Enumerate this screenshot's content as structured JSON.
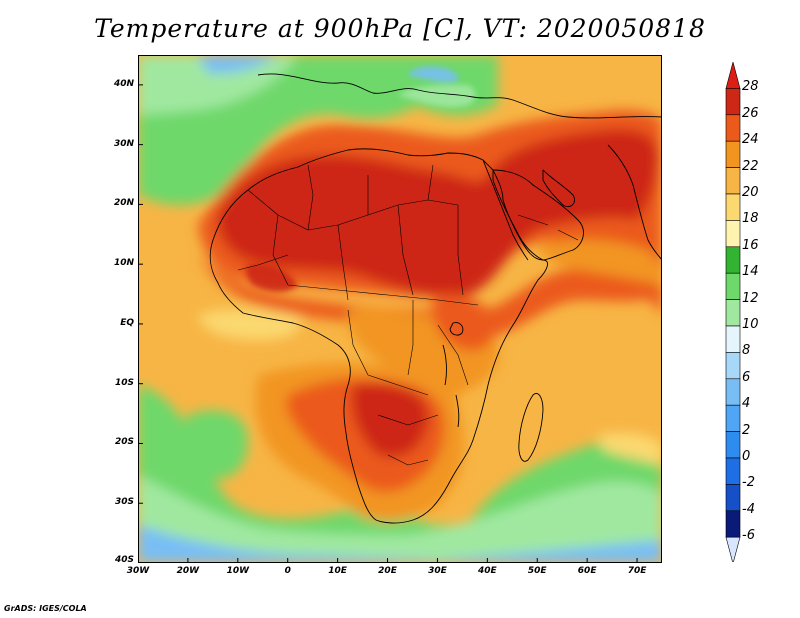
{
  "title": "Temperature at 900hPa [C], VT: 2020050818",
  "credit": "GrADS: IGES/COLA",
  "map": {
    "lon_range": [
      -30,
      75
    ],
    "lat_range": [
      -40,
      45
    ],
    "lat_ticks": [
      {
        "value": 40,
        "label": "40N"
      },
      {
        "value": 30,
        "label": "30N"
      },
      {
        "value": 20,
        "label": "20N"
      },
      {
        "value": 10,
        "label": "10N"
      },
      {
        "value": 0,
        "label": "EQ"
      },
      {
        "value": -10,
        "label": "10S"
      },
      {
        "value": -20,
        "label": "20S"
      },
      {
        "value": -30,
        "label": "30S"
      },
      {
        "value": -40,
        "label": "40S"
      }
    ],
    "lon_ticks": [
      {
        "value": -30,
        "label": "30W"
      },
      {
        "value": -20,
        "label": "20W"
      },
      {
        "value": -10,
        "label": "10W"
      },
      {
        "value": 0,
        "label": "0"
      },
      {
        "value": 10,
        "label": "10E"
      },
      {
        "value": 20,
        "label": "20E"
      },
      {
        "value": 30,
        "label": "30E"
      },
      {
        "value": 40,
        "label": "40E"
      },
      {
        "value": 50,
        "label": "50E"
      },
      {
        "value": 60,
        "label": "60E"
      },
      {
        "value": 70,
        "label": "70E"
      }
    ]
  },
  "colorbar": {
    "levels": [
      "-6",
      "-4",
      "-2",
      "0",
      "2",
      "4",
      "6",
      "8",
      "10",
      "12",
      "14",
      "16",
      "18",
      "20",
      "22",
      "24",
      "26",
      "28"
    ],
    "colors": [
      "#d8e6ff",
      "#0a1a78",
      "#1550c8",
      "#1e6ee6",
      "#2e8cf0",
      "#50a5f5",
      "#78bef5",
      "#a8d8f8",
      "#e4f6fc",
      "#a0e8a0",
      "#6ed86a",
      "#32b432",
      "#fff3b0",
      "#fbd870",
      "#f7b545",
      "#f29520",
      "#eb5a1a",
      "#cd2816",
      "#dc1e14"
    ]
  }
}
